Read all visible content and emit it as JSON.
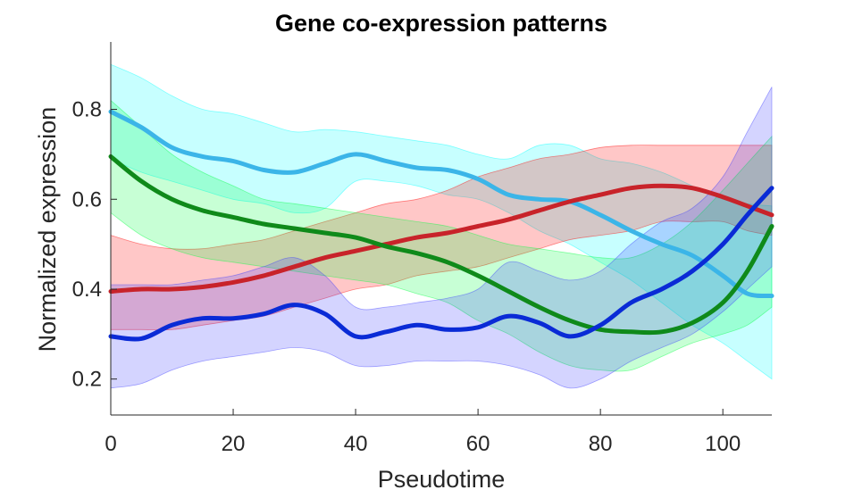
{
  "chart_data": {
    "type": "line",
    "title": "Gene co-expression patterns",
    "xlabel": "Pseudotime",
    "ylabel": "Normalized expression",
    "xlim": [
      0,
      108
    ],
    "ylim": [
      0.12,
      0.95
    ],
    "xticks": [
      0,
      20,
      40,
      60,
      80,
      100
    ],
    "yticks": [
      0.2,
      0.4,
      0.6,
      0.8
    ],
    "grid": false,
    "legend": "none",
    "series": [
      {
        "color": "#3bb5e8",
        "band_color": "#00ffff",
        "x": [
          0,
          5,
          10,
          15,
          20,
          25,
          30,
          35,
          40,
          45,
          50,
          55,
          60,
          65,
          70,
          75,
          80,
          85,
          90,
          95,
          100,
          104,
          108
        ],
        "y": [
          0.795,
          0.76,
          0.715,
          0.695,
          0.685,
          0.665,
          0.66,
          0.68,
          0.7,
          0.685,
          0.67,
          0.665,
          0.645,
          0.61,
          0.6,
          0.595,
          0.565,
          0.53,
          0.5,
          0.475,
          0.43,
          0.39,
          0.385
        ],
        "upper": [
          0.9,
          0.87,
          0.83,
          0.8,
          0.79,
          0.77,
          0.75,
          0.755,
          0.75,
          0.74,
          0.73,
          0.72,
          0.7,
          0.69,
          0.72,
          0.72,
          0.69,
          0.68,
          0.66,
          0.63,
          0.6,
          0.59,
          0.585
        ],
        "lower": [
          0.69,
          0.66,
          0.64,
          0.62,
          0.6,
          0.59,
          0.57,
          0.58,
          0.64,
          0.64,
          0.63,
          0.61,
          0.6,
          0.57,
          0.53,
          0.5,
          0.46,
          0.42,
          0.37,
          0.32,
          0.28,
          0.24,
          0.2
        ]
      },
      {
        "color": "#c8232a",
        "band_color": "#ff0000",
        "x": [
          0,
          5,
          10,
          15,
          20,
          25,
          30,
          35,
          40,
          45,
          50,
          55,
          60,
          65,
          70,
          75,
          80,
          85,
          90,
          95,
          100,
          104,
          108
        ],
        "y": [
          0.395,
          0.4,
          0.4,
          0.405,
          0.415,
          0.43,
          0.45,
          0.47,
          0.485,
          0.5,
          0.515,
          0.525,
          0.54,
          0.555,
          0.575,
          0.595,
          0.61,
          0.625,
          0.63,
          0.625,
          0.605,
          0.585,
          0.565
        ],
        "upper": [
          0.52,
          0.5,
          0.49,
          0.49,
          0.5,
          0.51,
          0.53,
          0.55,
          0.57,
          0.59,
          0.6,
          0.62,
          0.65,
          0.67,
          0.69,
          0.7,
          0.715,
          0.72,
          0.72,
          0.72,
          0.72,
          0.72,
          0.72
        ],
        "lower": [
          0.31,
          0.31,
          0.31,
          0.32,
          0.33,
          0.34,
          0.36,
          0.38,
          0.4,
          0.41,
          0.43,
          0.44,
          0.45,
          0.47,
          0.49,
          0.51,
          0.52,
          0.53,
          0.55,
          0.55,
          0.55,
          0.53,
          0.52
        ]
      },
      {
        "color": "#0f8a1a",
        "band_color": "#00ff40",
        "x": [
          0,
          5,
          10,
          15,
          20,
          25,
          30,
          35,
          40,
          45,
          50,
          55,
          60,
          65,
          70,
          75,
          80,
          85,
          90,
          95,
          100,
          104,
          108
        ],
        "y": [
          0.695,
          0.64,
          0.6,
          0.575,
          0.56,
          0.545,
          0.535,
          0.525,
          0.515,
          0.495,
          0.48,
          0.46,
          0.43,
          0.395,
          0.36,
          0.33,
          0.31,
          0.305,
          0.305,
          0.325,
          0.37,
          0.44,
          0.54
        ],
        "upper": [
          0.82,
          0.76,
          0.7,
          0.66,
          0.63,
          0.6,
          0.59,
          0.58,
          0.57,
          0.56,
          0.55,
          0.54,
          0.52,
          0.5,
          0.49,
          0.48,
          0.47,
          0.47,
          0.5,
          0.55,
          0.62,
          0.68,
          0.74
        ],
        "lower": [
          0.57,
          0.52,
          0.49,
          0.47,
          0.46,
          0.45,
          0.44,
          0.43,
          0.42,
          0.41,
          0.39,
          0.37,
          0.33,
          0.3,
          0.26,
          0.23,
          0.22,
          0.22,
          0.25,
          0.28,
          0.3,
          0.32,
          0.36
        ]
      },
      {
        "color": "#0a2bd6",
        "band_color": "#3b3bff",
        "x": [
          0,
          5,
          10,
          15,
          20,
          25,
          30,
          35,
          40,
          45,
          50,
          55,
          60,
          65,
          70,
          75,
          80,
          85,
          90,
          95,
          100,
          104,
          108
        ],
        "y": [
          0.295,
          0.29,
          0.32,
          0.335,
          0.335,
          0.345,
          0.365,
          0.345,
          0.295,
          0.305,
          0.32,
          0.31,
          0.315,
          0.34,
          0.325,
          0.295,
          0.32,
          0.37,
          0.4,
          0.44,
          0.5,
          0.565,
          0.625
        ],
        "upper": [
          0.41,
          0.41,
          0.41,
          0.42,
          0.43,
          0.45,
          0.47,
          0.43,
          0.36,
          0.36,
          0.37,
          0.38,
          0.4,
          0.46,
          0.44,
          0.42,
          0.44,
          0.5,
          0.55,
          0.58,
          0.65,
          0.75,
          0.85
        ],
        "lower": [
          0.18,
          0.19,
          0.22,
          0.24,
          0.25,
          0.26,
          0.27,
          0.26,
          0.23,
          0.23,
          0.24,
          0.24,
          0.24,
          0.23,
          0.21,
          0.18,
          0.2,
          0.24,
          0.27,
          0.3,
          0.35,
          0.4,
          0.45
        ]
      }
    ]
  }
}
